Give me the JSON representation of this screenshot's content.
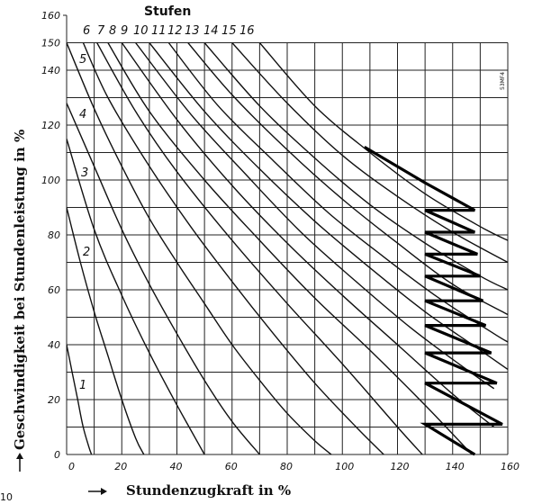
{
  "page_number": "10",
  "figure_code": "53MF4",
  "chart_data": {
    "type": "line",
    "title": "Stufen",
    "xlabel": "Stundenzugkraft in %",
    "ylabel": "Geschwindigkeit bei Stundenleistung in %",
    "xlim": [
      0,
      160
    ],
    "ylim": [
      0,
      160
    ],
    "x_ticks": [
      "0",
      "20",
      "40",
      "60",
      "80",
      "100",
      "120",
      "140",
      "160"
    ],
    "y_ticks": [
      "0",
      "20",
      "40",
      "60",
      "80",
      "100",
      "120",
      "140",
      "150",
      "160"
    ],
    "grid": true,
    "series": [
      {
        "name": "1",
        "x": [
          0,
          2,
          4,
          6,
          8,
          9
        ],
        "y": [
          40,
          30,
          20,
          10,
          3,
          0
        ]
      },
      {
        "name": "2",
        "x": [
          0,
          5,
          10,
          15,
          20,
          25,
          28
        ],
        "y": [
          90,
          70,
          52,
          36,
          20,
          6,
          0
        ]
      },
      {
        "name": "3",
        "x": [
          0,
          10,
          20,
          30,
          40,
          45,
          50
        ],
        "y": [
          115,
          82,
          58,
          37,
          18,
          9,
          0
        ]
      },
      {
        "name": "4",
        "x": [
          0,
          10,
          20,
          30,
          40,
          50,
          60,
          70
        ],
        "y": [
          128,
          105,
          82,
          62,
          44,
          27,
          12,
          0
        ]
      },
      {
        "name": "5",
        "x": [
          0,
          10,
          20,
          30,
          40,
          50,
          60,
          70,
          80,
          90,
          96
        ],
        "y": [
          150,
          126,
          105,
          86,
          70,
          55,
          40,
          27,
          15,
          5,
          0
        ]
      },
      {
        "name": "6",
        "x": [
          6,
          15,
          30,
          45,
          60,
          75,
          90,
          105,
          115
        ],
        "y": [
          150,
          130,
          105,
          83,
          63,
          44,
          26,
          10,
          0
        ]
      },
      {
        "name": "7",
        "x": [
          11,
          25,
          40,
          60,
          80,
          100,
          120,
          129
        ],
        "y": [
          150,
          125,
          103,
          78,
          55,
          33,
          10,
          0
        ]
      },
      {
        "name": "8",
        "x": [
          15,
          30,
          50,
          70,
          90,
          110,
          130,
          147
        ],
        "y": [
          150,
          125,
          100,
          78,
          57,
          38,
          18,
          0
        ]
      },
      {
        "name": "9",
        "x": [
          20,
          40,
          60,
          80,
          100,
          120,
          140,
          155
        ],
        "y": [
          150,
          122,
          98,
          77,
          58,
          40,
          22,
          10
        ]
      },
      {
        "name": "10",
        "x": [
          25,
          45,
          65,
          85,
          105,
          125,
          145,
          155
        ],
        "y": [
          150,
          124,
          102,
          81,
          63,
          46,
          31,
          24
        ]
      },
      {
        "name": "11",
        "x": [
          30,
          50,
          70,
          90,
          110,
          130,
          150,
          160
        ],
        "y": [
          150,
          125,
          104,
          85,
          68,
          52,
          38,
          31
        ]
      },
      {
        "name": "12",
        "x": [
          37,
          55,
          75,
          95,
          115,
          135,
          155,
          160
        ],
        "y": [
          150,
          127,
          107,
          88,
          72,
          57,
          44,
          41
        ]
      },
      {
        "name": "13",
        "x": [
          44,
          60,
          80,
          100,
          120,
          140,
          160
        ],
        "y": [
          150,
          131,
          111,
          93,
          77,
          62,
          51
        ]
      },
      {
        "name": "14",
        "x": [
          50,
          70,
          90,
          110,
          130,
          150,
          160
        ],
        "y": [
          150,
          127,
          108,
          91,
          77,
          65,
          60
        ]
      },
      {
        "name": "15",
        "x": [
          60,
          80,
          100,
          120,
          140,
          160
        ],
        "y": [
          150,
          128,
          109,
          94,
          81,
          70
        ]
      },
      {
        "name": "16",
        "x": [
          70,
          90,
          110,
          130,
          150,
          160
        ],
        "y": [
          150,
          127,
          110,
          95,
          83,
          78
        ]
      }
    ],
    "highlight_path": {
      "x": [
        108,
        130,
        148,
        130,
        148,
        130,
        149,
        130,
        150,
        130,
        151,
        130,
        152,
        130,
        154,
        130,
        156,
        130,
        158,
        130,
        148
      ],
      "y": [
        112,
        99,
        89,
        89,
        81,
        81,
        73,
        73,
        65,
        65,
        56,
        56,
        47,
        47,
        37,
        37,
        26,
        26,
        11,
        11,
        0
      ]
    }
  }
}
